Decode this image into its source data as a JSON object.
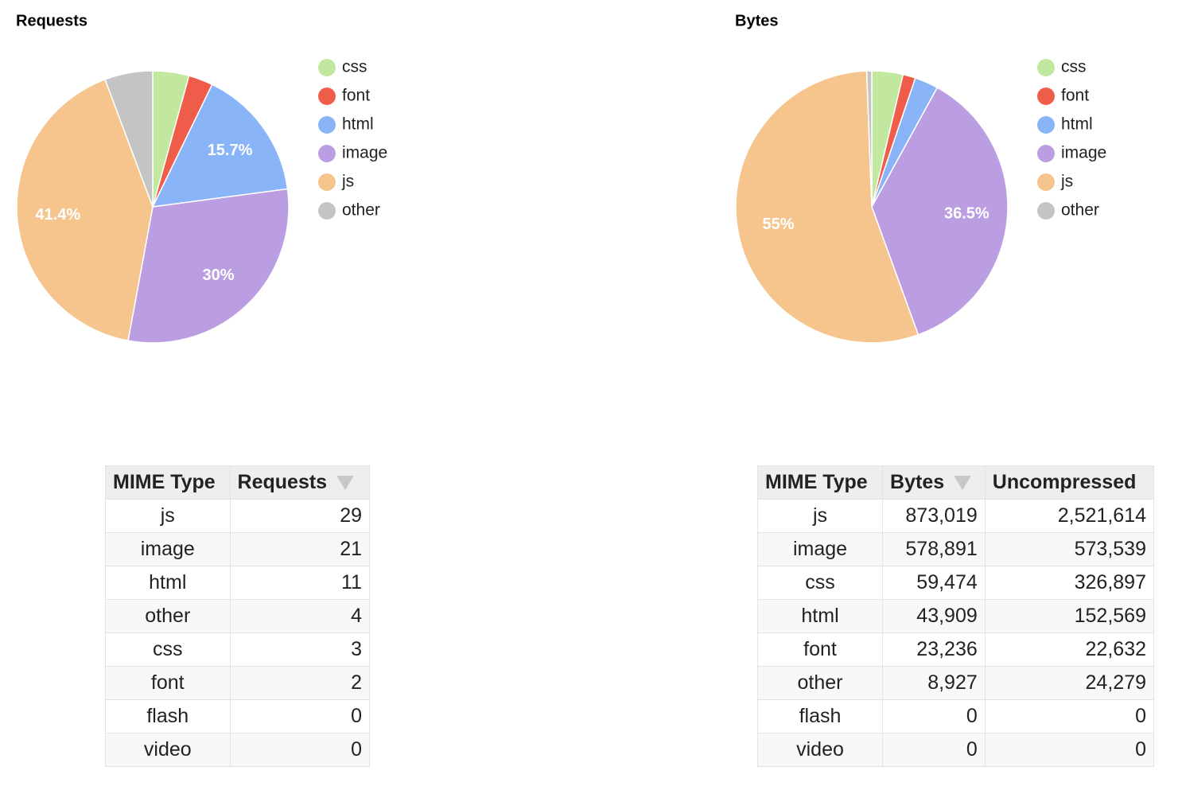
{
  "chart_data": [
    {
      "type": "pie",
      "title": "Requests",
      "categories": [
        "css",
        "font",
        "html",
        "image",
        "js",
        "other"
      ],
      "values": [
        4.3,
        2.9,
        15.7,
        30,
        41.4,
        5.7
      ],
      "value_labels": [
        null,
        null,
        "15.7%",
        "30%",
        "41.4%",
        null
      ],
      "colors": [
        "#c2e8a0",
        "#ef5d4a",
        "#8ab4f8",
        "#bb9de2",
        "#f5c58d",
        "#c4c4c4"
      ]
    },
    {
      "type": "pie",
      "title": "Bytes",
      "categories": [
        "css",
        "font",
        "html",
        "image",
        "js",
        "other"
      ],
      "values": [
        3.7,
        1.5,
        2.8,
        36.5,
        55,
        0.6
      ],
      "value_labels": [
        null,
        null,
        null,
        "36.5%",
        "55%",
        null
      ],
      "colors": [
        "#c2e8a0",
        "#ef5d4a",
        "#8ab4f8",
        "#bb9de2",
        "#f5c58d",
        "#c4c4c4"
      ]
    }
  ],
  "tables": [
    {
      "columns": [
        "MIME Type",
        "Requests"
      ],
      "rows": [
        [
          "js",
          "29"
        ],
        [
          "image",
          "21"
        ],
        [
          "html",
          "11"
        ],
        [
          "other",
          "4"
        ],
        [
          "css",
          "3"
        ],
        [
          "font",
          "2"
        ],
        [
          "flash",
          "0"
        ],
        [
          "video",
          "0"
        ]
      ]
    },
    {
      "columns": [
        "MIME Type",
        "Bytes",
        "Uncompressed"
      ],
      "rows": [
        [
          "js",
          "873,019",
          "2,521,614"
        ],
        [
          "image",
          "578,891",
          "573,539"
        ],
        [
          "css",
          "59,474",
          "326,897"
        ],
        [
          "html",
          "43,909",
          "152,569"
        ],
        [
          "font",
          "23,236",
          "22,632"
        ],
        [
          "other",
          "8,927",
          "24,279"
        ],
        [
          "flash",
          "0",
          "0"
        ],
        [
          "video",
          "0",
          "0"
        ]
      ]
    }
  ]
}
